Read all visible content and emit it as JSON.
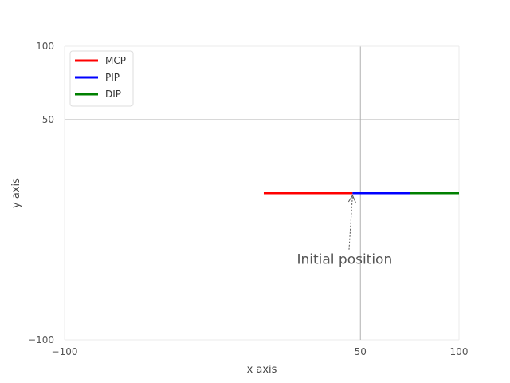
{
  "chart_data": {
    "type": "line",
    "title": "",
    "xlabel": "x axis",
    "ylabel": "y axis",
    "xlim": [
      -100,
      100
    ],
    "ylim": [
      -100,
      100
    ],
    "xticks": [
      -100,
      50,
      100
    ],
    "yticks": [
      -100,
      50,
      100
    ],
    "xtick_labels": [
      "−100",
      "50",
      "100"
    ],
    "ytick_labels": [
      "−100",
      "50",
      "100"
    ],
    "grid": true,
    "legend_position": "top-left",
    "series": [
      {
        "name": "MCP",
        "color": "#ff0000",
        "x": [
          1,
          46
        ],
        "y": [
          0,
          0
        ]
      },
      {
        "name": "PIP",
        "color": "#0000ff",
        "x": [
          46,
          75
        ],
        "y": [
          0,
          0
        ]
      },
      {
        "name": "DIP",
        "color": "#008000",
        "x": [
          75,
          100
        ],
        "y": [
          0,
          0
        ]
      }
    ],
    "annotations": [
      {
        "text": "Initial position",
        "x": 46,
        "y": 0,
        "text_x": 41,
        "text_y": -33,
        "arrow": true
      }
    ]
  }
}
